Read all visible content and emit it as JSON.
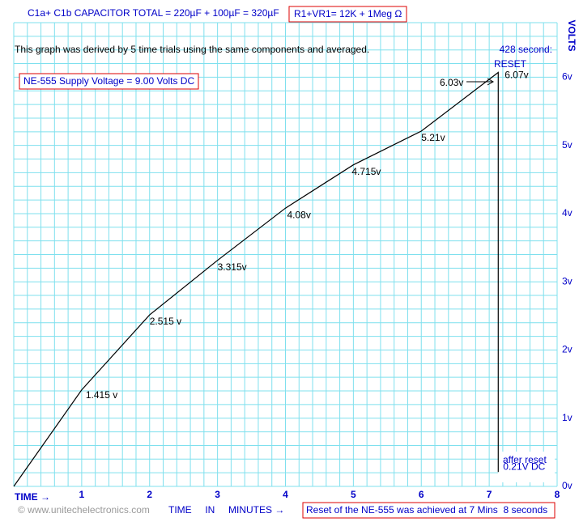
{
  "chart_data": {
    "type": "line",
    "title": "C1a+ C1b CAPACITOR TOTAL = 220µF + 100µF = 320µF",
    "resistor_note": "R1+VR1= 12K + 1Meg Ω",
    "subtitle": "This graph was derived by 5 time trials using the same components and averaged.",
    "supply_note": "NE-555 Supply Voltage = 9.00 Volts DC",
    "reset_time": "428 second:",
    "reset_label": "RESET",
    "peak_note": "6.03v",
    "after_reset": "affer reset",
    "y_label": "VOLTS",
    "x_start_label": "TIME →",
    "x_label": "TIME     IN     MINUTES →",
    "copyright": "© www.unitechelectronics.com",
    "reset_summary": "Reset of the NE-555 was achieved at 7 Mins  8 seconds",
    "x": [
      0,
      1,
      2,
      3,
      4,
      5,
      6,
      7.133,
      7.133
    ],
    "values": [
      0,
      1.415,
      2.515,
      3.315,
      4.08,
      4.715,
      5.21,
      6.07,
      0.21
    ],
    "value_labels": [
      null,
      "1.415 v",
      "2.515 v",
      "3.315v",
      "4.08v",
      "4.715v",
      "5.21v",
      "6.07v",
      "0.21V DC"
    ],
    "color": "#000000",
    "xlim": [
      0,
      8
    ],
    "ylim": [
      0,
      6.8
    ],
    "xticks": [
      1,
      2,
      3,
      4,
      5,
      6,
      7,
      8
    ],
    "yticks": [
      {
        "value": 0,
        "label": "0v"
      },
      {
        "value": 1,
        "label": "1v"
      },
      {
        "value": 2,
        "label": "2v"
      },
      {
        "value": 3,
        "label": "3v"
      },
      {
        "value": 4,
        "label": "4v"
      },
      {
        "value": 5,
        "label": "5v"
      },
      {
        "value": 6,
        "label": "6v"
      }
    ],
    "grid": true,
    "grid_step": 0.2,
    "grid_color": "#7fe0ee"
  }
}
